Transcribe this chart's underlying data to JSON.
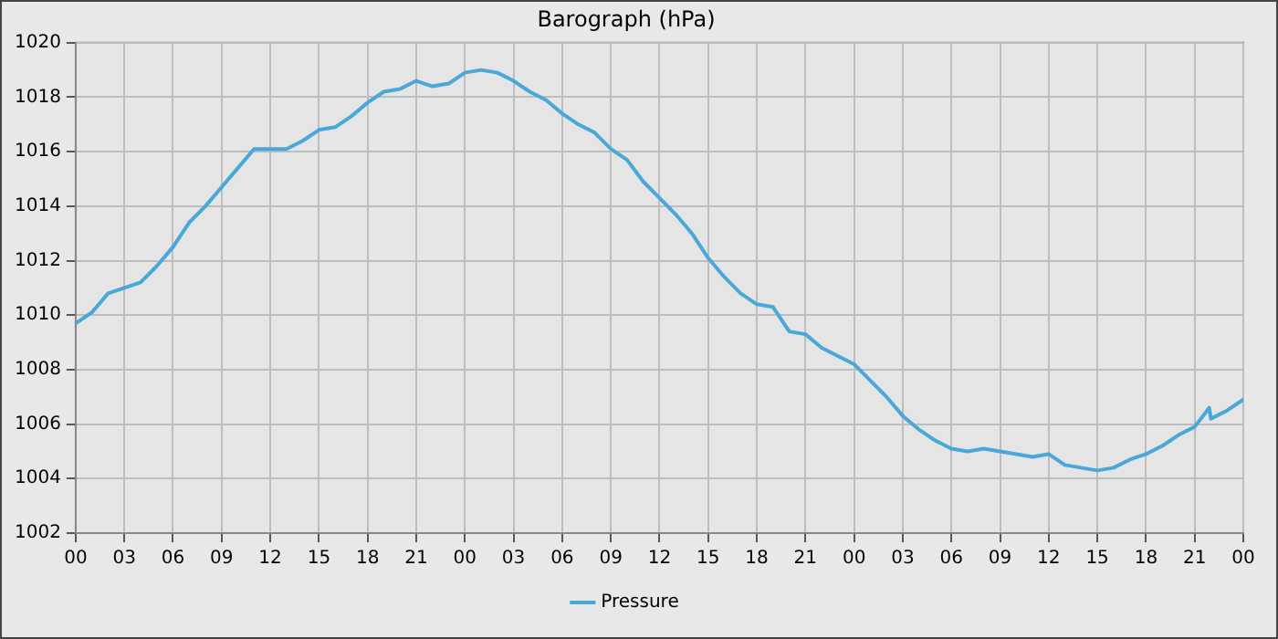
{
  "chart_data": {
    "type": "line",
    "title": "Barograph (hPa)",
    "xlim": [
      0,
      72
    ],
    "xticks": [
      {
        "value": 0,
        "label": "00"
      },
      {
        "value": 3,
        "label": "03"
      },
      {
        "value": 6,
        "label": "06"
      },
      {
        "value": 9,
        "label": "09"
      },
      {
        "value": 12,
        "label": "12"
      },
      {
        "value": 15,
        "label": "15"
      },
      {
        "value": 18,
        "label": "18"
      },
      {
        "value": 21,
        "label": "21"
      },
      {
        "value": 24,
        "label": "00"
      },
      {
        "value": 27,
        "label": "03"
      },
      {
        "value": 30,
        "label": "06"
      },
      {
        "value": 33,
        "label": "09"
      },
      {
        "value": 36,
        "label": "12"
      },
      {
        "value": 39,
        "label": "15"
      },
      {
        "value": 42,
        "label": "18"
      },
      {
        "value": 45,
        "label": "21"
      },
      {
        "value": 48,
        "label": "00"
      },
      {
        "value": 51,
        "label": "03"
      },
      {
        "value": 54,
        "label": "06"
      },
      {
        "value": 57,
        "label": "09"
      },
      {
        "value": 60,
        "label": "12"
      },
      {
        "value": 63,
        "label": "15"
      },
      {
        "value": 66,
        "label": "18"
      },
      {
        "value": 69,
        "label": "21"
      },
      {
        "value": 72,
        "label": "00"
      }
    ],
    "ylim": [
      1002,
      1020
    ],
    "yticks": [
      1002,
      1004,
      1006,
      1008,
      1010,
      1012,
      1014,
      1016,
      1018,
      1020
    ],
    "grid": true,
    "legend": "bottom",
    "marker": "none",
    "line_style": "solid",
    "x": [
      0,
      1,
      2,
      3,
      4,
      5,
      6,
      7,
      8,
      9,
      10,
      11,
      12,
      13,
      14,
      15,
      16,
      17,
      18,
      19,
      20,
      21,
      22,
      23,
      24,
      25,
      26,
      27,
      28,
      29,
      30,
      31,
      32,
      33,
      34,
      35,
      36,
      37,
      38,
      39,
      40,
      41,
      42,
      43,
      44,
      45,
      46,
      47,
      48,
      49,
      50,
      51,
      52,
      53,
      54,
      55,
      56,
      57,
      58,
      59,
      60,
      61,
      62,
      63,
      64,
      65,
      66,
      67,
      68,
      69,
      69.9,
      70,
      71,
      72
    ],
    "series": [
      {
        "name": "Pressure",
        "color": "#4aa8d8",
        "values": [
          1009.7,
          1010.1,
          1010.8,
          1011.0,
          1011.2,
          1011.8,
          1012.5,
          1013.4,
          1014.0,
          1014.7,
          1015.4,
          1016.1,
          1016.1,
          1016.1,
          1016.4,
          1016.8,
          1016.9,
          1017.3,
          1017.8,
          1018.2,
          1018.3,
          1018.6,
          1018.4,
          1018.5,
          1018.9,
          1019.0,
          1018.9,
          1018.6,
          1018.2,
          1017.9,
          1017.4,
          1017.0,
          1016.7,
          1016.1,
          1015.7,
          1014.9,
          1014.3,
          1013.7,
          1013.0,
          1012.1,
          1011.4,
          1010.8,
          1010.4,
          1010.3,
          1009.4,
          1009.3,
          1008.8,
          1008.5,
          1008.2,
          1007.6,
          1007.0,
          1006.3,
          1005.8,
          1005.4,
          1005.1,
          1005.0,
          1005.1,
          1005.0,
          1004.9,
          1004.8,
          1004.9,
          1004.5,
          1004.4,
          1004.3,
          1004.4,
          1004.7,
          1004.9,
          1005.2,
          1005.6,
          1005.9,
          1006.6,
          1006.2,
          1006.5,
          1006.9
        ]
      }
    ]
  }
}
